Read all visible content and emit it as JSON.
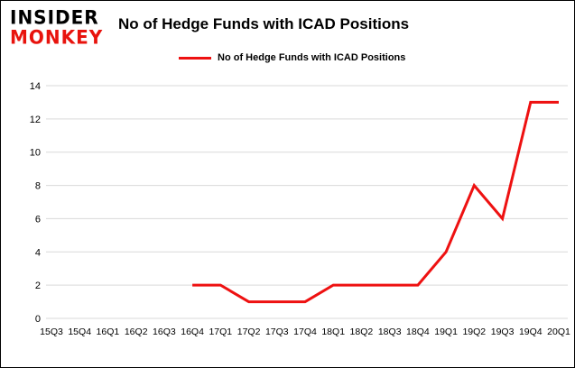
{
  "header": {
    "logo_line1": "INSIDER",
    "logo_line2": "MONKEY",
    "title": "No of Hedge Funds with ICAD Positions"
  },
  "legend": {
    "label": "No of Hedge Funds with ICAD Positions"
  },
  "colors": {
    "line_red": "#ee1111",
    "logo_red": "#e8130d",
    "grid_gray": "#d9d9d9",
    "text_black": "#000000"
  },
  "chart_data": {
    "type": "line",
    "title": "No of Hedge Funds with ICAD Positions",
    "xlabel": "",
    "ylabel": "",
    "categories": [
      "15Q3",
      "15Q4",
      "16Q1",
      "16Q2",
      "16Q3",
      "16Q4",
      "17Q1",
      "17Q2",
      "17Q3",
      "17Q4",
      "18Q1",
      "18Q2",
      "18Q3",
      "18Q4",
      "19Q1",
      "19Q2",
      "19Q3",
      "19Q4",
      "20Q1"
    ],
    "series": [
      {
        "name": "No of Hedge Funds with ICAD Positions",
        "values": [
          null,
          null,
          null,
          null,
          null,
          2,
          2,
          1,
          1,
          1,
          2,
          2,
          2,
          2,
          4,
          8,
          6,
          13,
          13
        ]
      }
    ],
    "ylim": [
      0,
      14
    ],
    "yticks": [
      0,
      2,
      4,
      6,
      8,
      10,
      12,
      14
    ],
    "grid": "horizontal",
    "legend_position": "top-left"
  }
}
